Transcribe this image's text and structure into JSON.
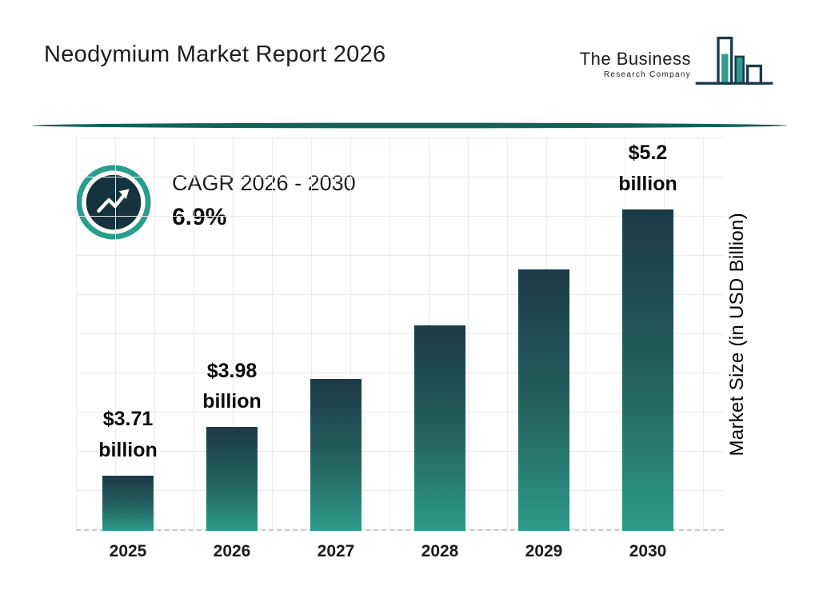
{
  "header": {
    "title": "Neodymium Market Report 2026",
    "logo": {
      "line1": "The Business",
      "line2": "Research Company"
    }
  },
  "cagr": {
    "label": "CAGR 2026 - 2030",
    "value": "6.9%"
  },
  "chart_data": {
    "type": "bar",
    "title": "Neodymium Market Report 2026",
    "categories": [
      "2025",
      "2026",
      "2027",
      "2028",
      "2029",
      "2030"
    ],
    "values": [
      3.71,
      3.98,
      4.25,
      4.55,
      4.86,
      5.2
    ],
    "bar_labels": [
      {
        "line1": "$3.71",
        "line2": "billion"
      },
      {
        "line1": "$3.98",
        "line2": "billion"
      },
      {
        "line1": "",
        "line2": ""
      },
      {
        "line1": "",
        "line2": ""
      },
      {
        "line1": "",
        "line2": ""
      },
      {
        "line1": "$5.2",
        "line2": "billion"
      }
    ],
    "ylabel": "Market Size (in USD Billion)",
    "ylim": [
      3.4,
      5.6
    ],
    "grid": true,
    "legend": "none",
    "colors": {
      "bar_top": "#1c3947",
      "bar_bottom": "#2d9b88",
      "accent_teal": "#2a9d8f",
      "dark_navy": "#16323f",
      "divider": "#136355"
    }
  }
}
